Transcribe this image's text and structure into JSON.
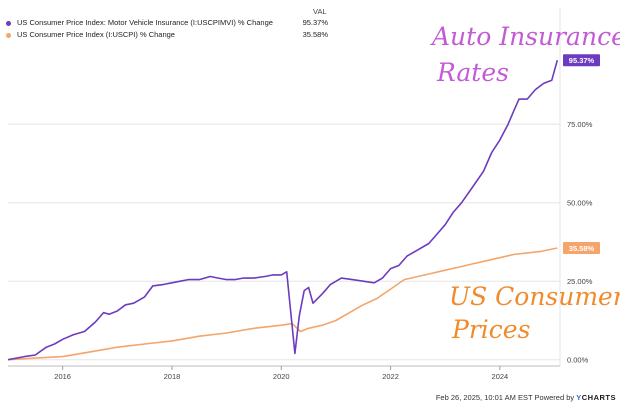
{
  "chart_data": {
    "type": "line",
    "legend": {
      "header": "VAL",
      "placement": "top-left"
    },
    "x_ticks": [
      "2016",
      "2018",
      "2020",
      "2022",
      "2024"
    ],
    "x_tick_values": [
      2016,
      2018,
      2020,
      2022,
      2024
    ],
    "xlim": [
      2015.0,
      2025.1
    ],
    "y_ticks": [
      "0.00%",
      "25.00%",
      "50.00%",
      "75.00%"
    ],
    "y_tick_values": [
      0,
      25,
      50,
      75
    ],
    "ylim": [
      -2,
      112
    ],
    "grid": true,
    "series": [
      {
        "name": "US Consumer Price Index: Motor Vehicle Insurance (I:USCPIMVI) % Change",
        "value_label": "95.37%",
        "color": "#6c3bbf",
        "x": [
          2015.0,
          2015.3,
          2015.5,
          2015.7,
          2015.85,
          2016.0,
          2016.2,
          2016.4,
          2016.6,
          2016.75,
          2016.85,
          2017.0,
          2017.15,
          2017.3,
          2017.5,
          2017.65,
          2017.85,
          2018.0,
          2018.15,
          2018.3,
          2018.5,
          2018.7,
          2018.85,
          2019.0,
          2019.15,
          2019.3,
          2019.5,
          2019.7,
          2019.85,
          2020.0,
          2020.1,
          2020.25,
          2020.33,
          2020.42,
          2020.5,
          2020.58,
          2020.75,
          2020.9,
          2021.1,
          2021.3,
          2021.5,
          2021.7,
          2021.85,
          2022.0,
          2022.15,
          2022.3,
          2022.5,
          2022.7,
          2022.85,
          2023.0,
          2023.15,
          2023.3,
          2023.5,
          2023.7,
          2023.85,
          2024.0,
          2024.15,
          2024.25,
          2024.35,
          2024.5,
          2024.65,
          2024.8,
          2024.95,
          2025.05
        ],
        "y": [
          0,
          1,
          1.5,
          4,
          5,
          6.5,
          8,
          9,
          12,
          15,
          14.5,
          15.5,
          17.5,
          18,
          20,
          23.5,
          24,
          24.5,
          25,
          25.5,
          25.5,
          26.5,
          26,
          25.5,
          25.5,
          26,
          26,
          26.5,
          27,
          27,
          28,
          2,
          14,
          22,
          23,
          18,
          21,
          24,
          26,
          25.5,
          25,
          24.5,
          26,
          29,
          30,
          33,
          35,
          37,
          40,
          43,
          47,
          50,
          55,
          60,
          66,
          70,
          75,
          79,
          83,
          83,
          86,
          88,
          89,
          95.37
        ]
      },
      {
        "name": "US Consumer Price Index (I:USCPI) % Change",
        "value_label": "35.58%",
        "color": "#f4a56b",
        "x": [
          2015.0,
          2015.5,
          2016.0,
          2016.5,
          2017.0,
          2017.5,
          2018.0,
          2018.5,
          2019.0,
          2019.5,
          2020.0,
          2020.2,
          2020.35,
          2020.5,
          2020.75,
          2021.0,
          2021.25,
          2021.5,
          2021.75,
          2022.0,
          2022.25,
          2022.5,
          2022.75,
          2023.0,
          2023.25,
          2023.5,
          2023.75,
          2024.0,
          2024.25,
          2024.5,
          2024.75,
          2025.05
        ],
        "y": [
          0,
          0.5,
          1,
          2.5,
          4,
          5,
          6,
          7.5,
          8.5,
          10,
          11,
          11.5,
          9,
          10,
          11,
          12.5,
          15,
          17.5,
          19.5,
          22.5,
          25.5,
          26.5,
          27.5,
          28.5,
          29.5,
          30.5,
          31.5,
          32.5,
          33.5,
          34,
          34.5,
          35.58
        ]
      }
    ],
    "annotations": [
      {
        "text": "Auto Insurance",
        "color": "#c45bd6"
      },
      {
        "text": "Rates",
        "color": "#c45bd6"
      },
      {
        "text": "US Consumer",
        "color": "#f08a2c"
      },
      {
        "text": "Prices",
        "color": "#f08a2c"
      }
    ]
  },
  "footer": {
    "timestamp": "Feb 26, 2025, 10:01 AM EST",
    "powered_by": "Powered by",
    "brand_y": "Y",
    "brand_rest": "CHARTS"
  }
}
